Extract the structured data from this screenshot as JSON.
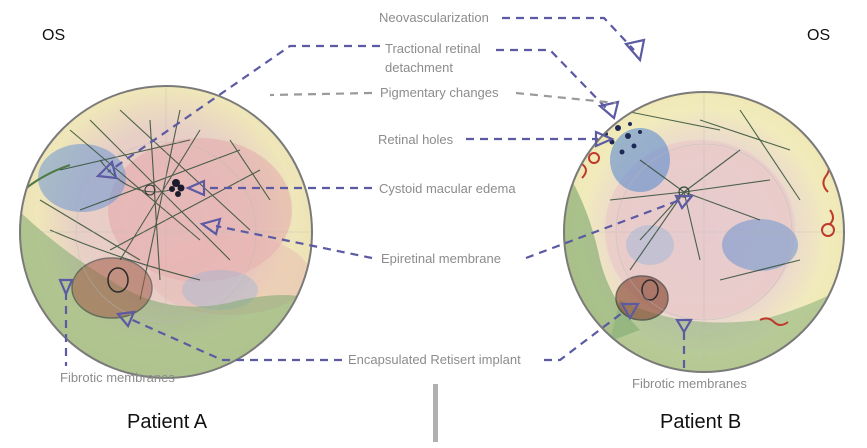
{
  "patient_a": {
    "eye_label": "OS",
    "patient_label": "Patient A",
    "fibrotic_label": "Fibrotic membranes"
  },
  "patient_b": {
    "eye_label": "OS",
    "patient_label": "Patient B",
    "fibrotic_label": "Fibrotic membranes"
  },
  "labels": {
    "neovascularization": "Neovascularization",
    "tractional_line1": "Tractional retinal",
    "tractional_line2": "detachment",
    "pigmentary": "Pigmentary changes",
    "retinal_holes": "Retinal holes",
    "cystoid": "Cystoid macular edema",
    "epiretinal": "Epiretinal membrane",
    "retisert": "Encapsulated Retisert implant"
  },
  "colors": {
    "leader": "#5b5aa3",
    "leader_gray": "#9a9a9a",
    "label_text": "#8c8c8c",
    "hemorrhage_red": "#c0392b",
    "fibrosis_green": "#5f8a55",
    "edema_blue": "#4f7fc4",
    "background_yellow": "#f3ecb0"
  }
}
